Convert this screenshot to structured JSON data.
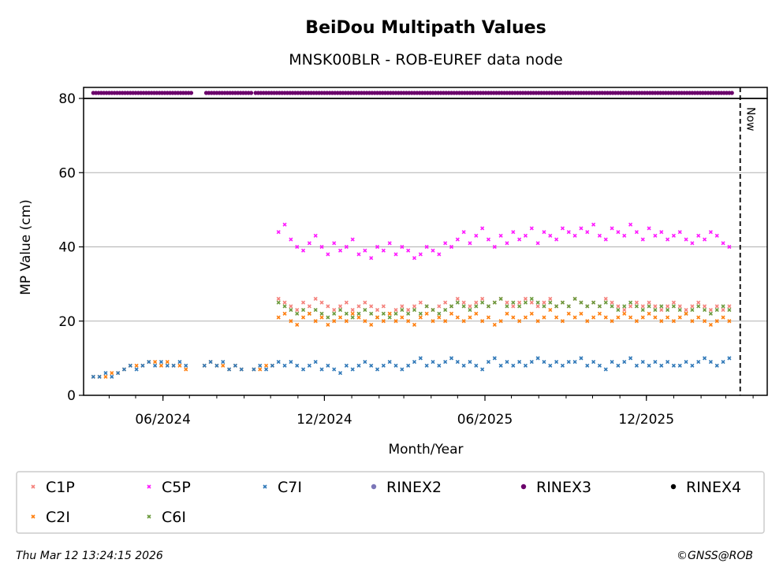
{
  "chart_data": {
    "type": "scatter",
    "title": "BeiDou Multipath Values",
    "subtitle": "MNSK00BLR - ROB-EUREF data node",
    "xlabel": "Month/Year",
    "ylabel": "MP Value (cm)",
    "ylim": [
      0,
      80
    ],
    "yticks": [
      0,
      20,
      40,
      60,
      80
    ],
    "ygrid": [
      20,
      40,
      60
    ],
    "xlim": [
      "2024-03-03",
      "2026-04-17"
    ],
    "xticks": [
      {
        "date": "2024-06-01",
        "label": "06/2024"
      },
      {
        "date": "2024-12-01",
        "label": "12/2024"
      },
      {
        "date": "2025-06-01",
        "label": "06/2025"
      },
      {
        "date": "2025-12-01",
        "label": "12/2025"
      }
    ],
    "now": {
      "date": "2026-03-12",
      "label": "Now"
    },
    "x_start": "2024-03-14",
    "x_step_days": 7,
    "series": [
      {
        "name": "C1P",
        "color": "#f4807a",
        "marker": "x",
        "values": [
          null,
          null,
          null,
          null,
          null,
          null,
          null,
          null,
          null,
          null,
          null,
          null,
          null,
          null,
          null,
          null,
          null,
          null,
          null,
          null,
          null,
          null,
          null,
          null,
          null,
          null,
          null,
          null,
          null,
          null,
          26,
          25,
          24,
          23,
          25,
          24,
          26,
          25,
          24,
          23,
          24,
          25,
          23,
          24,
          25,
          24,
          23,
          24,
          22,
          23,
          24,
          23,
          24,
          25,
          24,
          23,
          24,
          25,
          24,
          26,
          25,
          24,
          25,
          26,
          24,
          25,
          26,
          25,
          24,
          25,
          26,
          25,
          24,
          25,
          26,
          24,
          25,
          24,
          26,
          25,
          24,
          25,
          24,
          26,
          25,
          24,
          23,
          24,
          25,
          24,
          25,
          24,
          23,
          24,
          25,
          24,
          23,
          24,
          25,
          24,
          23,
          24,
          23,
          24
        ]
      },
      {
        "name": "C2I",
        "color": "#ff7f0e",
        "marker": "x",
        "values": [
          5,
          5,
          5,
          6,
          6,
          7,
          8,
          8,
          8,
          9,
          9,
          8,
          9,
          8,
          8,
          7,
          null,
          null,
          8,
          9,
          8,
          8,
          7,
          8,
          7,
          null,
          7,
          7,
          8,
          8,
          21,
          22,
          20,
          19,
          21,
          22,
          20,
          21,
          19,
          20,
          21,
          20,
          22,
          21,
          20,
          19,
          21,
          20,
          22,
          20,
          21,
          20,
          19,
          21,
          22,
          20,
          21,
          20,
          22,
          21,
          20,
          21,
          22,
          20,
          21,
          19,
          20,
          22,
          21,
          20,
          21,
          22,
          20,
          21,
          23,
          21,
          20,
          22,
          21,
          22,
          20,
          21,
          22,
          21,
          20,
          21,
          22,
          21,
          20,
          21,
          22,
          21,
          20,
          21,
          20,
          21,
          22,
          20,
          21,
          20,
          19,
          20,
          21,
          20
        ]
      },
      {
        "name": "C5P",
        "color": "#ff1aff",
        "marker": "x",
        "values": [
          null,
          null,
          null,
          null,
          null,
          null,
          null,
          null,
          null,
          null,
          null,
          null,
          null,
          null,
          null,
          null,
          null,
          null,
          null,
          null,
          null,
          null,
          null,
          null,
          null,
          null,
          null,
          null,
          null,
          null,
          44,
          46,
          42,
          40,
          39,
          41,
          43,
          40,
          38,
          41,
          39,
          40,
          42,
          38,
          39,
          37,
          40,
          39,
          41,
          38,
          40,
          39,
          37,
          38,
          40,
          39,
          38,
          41,
          40,
          42,
          44,
          41,
          43,
          45,
          42,
          40,
          43,
          41,
          44,
          42,
          43,
          45,
          41,
          44,
          43,
          42,
          45,
          44,
          43,
          45,
          44,
          46,
          43,
          42,
          45,
          44,
          43,
          46,
          44,
          42,
          45,
          43,
          44,
          42,
          43,
          44,
          42,
          41,
          43,
          42,
          44,
          43,
          41,
          40
        ]
      },
      {
        "name": "C6I",
        "color": "#6a9a3c",
        "marker": "x",
        "values": [
          null,
          null,
          null,
          null,
          null,
          null,
          null,
          null,
          null,
          null,
          null,
          null,
          null,
          null,
          null,
          null,
          null,
          null,
          null,
          null,
          null,
          null,
          null,
          null,
          null,
          null,
          null,
          null,
          null,
          null,
          25,
          24,
          23,
          22,
          23,
          22,
          23,
          22,
          21,
          22,
          23,
          22,
          21,
          22,
          23,
          22,
          21,
          22,
          21,
          22,
          23,
          22,
          23,
          22,
          24,
          23,
          22,
          23,
          24,
          25,
          24,
          23,
          24,
          25,
          24,
          25,
          26,
          24,
          25,
          24,
          25,
          26,
          25,
          24,
          25,
          24,
          25,
          24,
          26,
          25,
          24,
          25,
          24,
          25,
          24,
          23,
          24,
          25,
          24,
          23,
          24,
          23,
          24,
          23,
          24,
          23,
          22,
          23,
          24,
          23,
          22,
          23,
          24,
          23
        ]
      },
      {
        "name": "C7I",
        "color": "#2f78b8",
        "marker": "x",
        "values": [
          5,
          5,
          6,
          5,
          6,
          7,
          8,
          7,
          8,
          9,
          8,
          9,
          8,
          8,
          9,
          8,
          null,
          null,
          8,
          9,
          8,
          9,
          7,
          8,
          7,
          null,
          7,
          8,
          7,
          8,
          9,
          8,
          9,
          8,
          7,
          8,
          9,
          7,
          8,
          7,
          6,
          8,
          7,
          8,
          9,
          8,
          7,
          8,
          9,
          8,
          7,
          8,
          9,
          10,
          8,
          9,
          8,
          9,
          10,
          9,
          8,
          9,
          8,
          7,
          9,
          10,
          8,
          9,
          8,
          9,
          8,
          9,
          10,
          9,
          8,
          9,
          8,
          9,
          9,
          10,
          8,
          9,
          8,
          7,
          9,
          8,
          9,
          10,
          8,
          9,
          8,
          9,
          8,
          9,
          8,
          8,
          9,
          8,
          9,
          10,
          9,
          8,
          9,
          10
        ]
      }
    ],
    "availability": [
      {
        "name": "RINEX2",
        "color": "#7b76b8",
        "ranges": []
      },
      {
        "name": "RINEX3",
        "color": "#6b006b",
        "ranges": [
          [
            "2024-03-14",
            "2024-07-03"
          ],
          [
            "2024-07-20",
            "2024-09-10"
          ],
          [
            "2024-09-14",
            "2026-03-10"
          ]
        ]
      },
      {
        "name": "RINEX4",
        "color": "#000000",
        "ranges": []
      }
    ],
    "legend": {
      "placement": "bottom",
      "entries": [
        "C1P",
        "C5P",
        "C7I",
        "RINEX2",
        "RINEX3",
        "RINEX4",
        "C2I",
        "C6I"
      ]
    }
  },
  "footer": {
    "timestamp": "Thu Mar 12 13:24:15 2026",
    "copyright": "©GNSS@ROB"
  }
}
